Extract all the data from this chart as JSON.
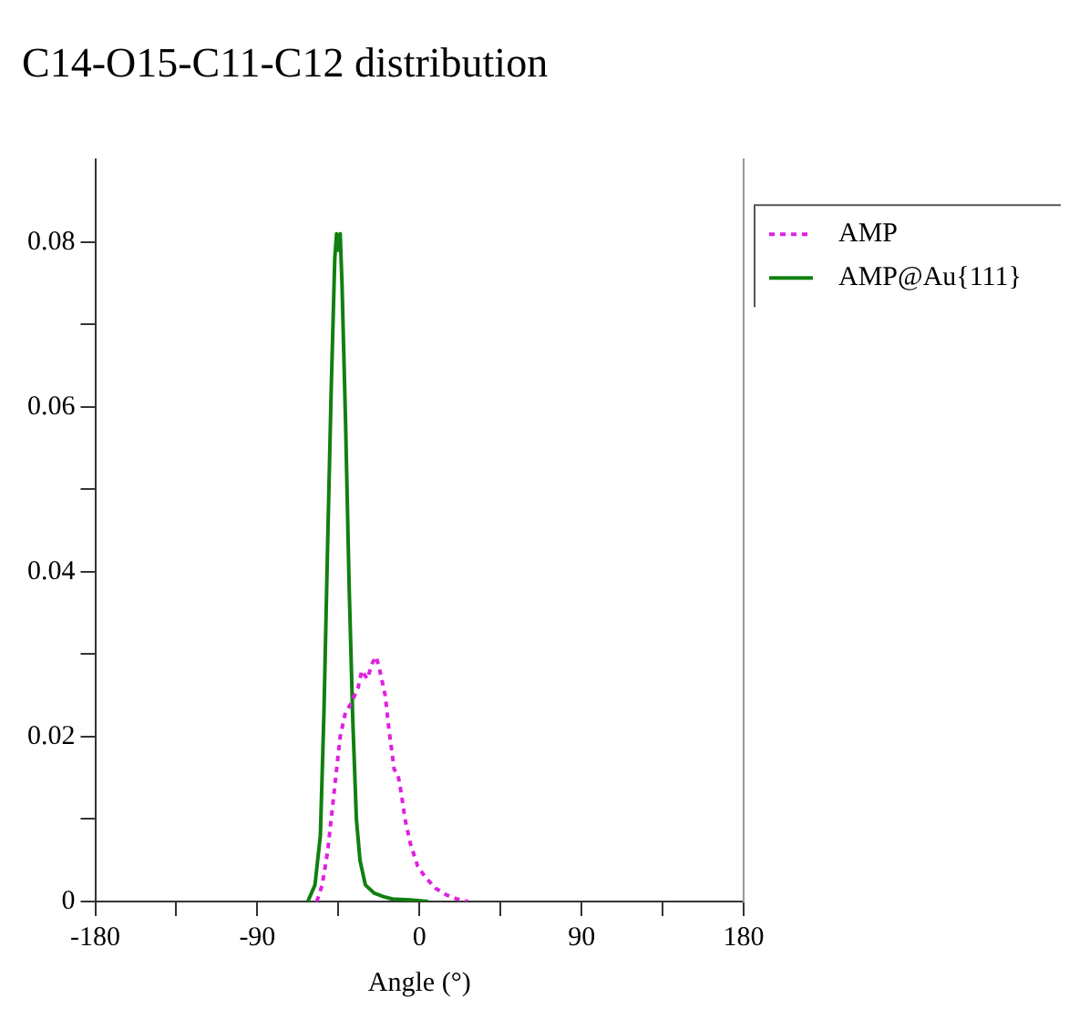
{
  "chart_data": {
    "type": "line",
    "title": "C14-O15-C11-C12 distribution",
    "xlabel": "Angle (°)",
    "xlim": [
      -180,
      180
    ],
    "xticks": [
      -180,
      {
        "value": -135,
        "label": null
      },
      -90,
      {
        "value": -45,
        "label": null
      },
      0,
      {
        "value": 45,
        "label": null
      },
      90,
      {
        "value": 135,
        "label": null
      },
      180
    ],
    "ylim": [
      0,
      0.09
    ],
    "yticks": [
      0,
      {
        "value": 0.01,
        "label": null
      },
      0.02,
      {
        "value": 0.03,
        "label": null
      },
      0.04,
      {
        "value": 0.05,
        "label": null
      },
      0.06,
      {
        "value": 0.07,
        "label": null
      },
      0.08
    ],
    "grid": false,
    "legend": "top right",
    "marker": "none",
    "series": [
      {
        "name": "AMP",
        "color": "#e020e0",
        "line_style": "dotted",
        "x": [
          -57,
          -54,
          -51,
          -48,
          -46,
          -44,
          -41,
          -38,
          -36,
          -34,
          -32,
          -29,
          -26,
          -24,
          -22,
          -19,
          -17,
          -14,
          -12,
          -10,
          -8,
          -5,
          -1,
          3,
          9,
          15,
          21,
          27
        ],
        "values": [
          0,
          0.002,
          0.006,
          0.012,
          0.016,
          0.02,
          0.023,
          0.024,
          0.025,
          0.026,
          0.028,
          0.027,
          0.029,
          0.0297,
          0.028,
          0.025,
          0.021,
          0.016,
          0.0155,
          0.013,
          0.01,
          0.007,
          0.0043,
          0.003,
          0.0016,
          0.0008,
          0.0003,
          0
        ]
      },
      {
        "name": "AMP@Au{111}",
        "color": "#108010",
        "line_style": "solid",
        "x": [
          -62,
          -58,
          -55,
          -53,
          -51,
          -49,
          -47,
          -46,
          -45,
          -44,
          -43,
          -41,
          -39,
          -37,
          -35,
          -33,
          -30,
          -25,
          -20,
          -15,
          -5,
          5
        ],
        "values": [
          0,
          0.002,
          0.008,
          0.023,
          0.043,
          0.062,
          0.078,
          0.081,
          0.079,
          0.081,
          0.075,
          0.058,
          0.038,
          0.022,
          0.01,
          0.005,
          0.002,
          0.001,
          0.0006,
          0.0003,
          0.0002,
          0
        ]
      }
    ]
  }
}
